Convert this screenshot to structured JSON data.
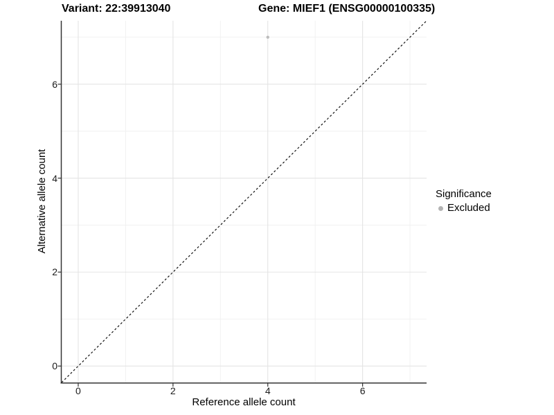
{
  "titles": {
    "variant": "Variant: 22:39913040",
    "gene": "Gene: MIEF1 (ENSG00000100335)"
  },
  "chart_data": {
    "type": "scatter",
    "title_left": "Variant: 22:39913040",
    "title_right": "Gene: MIEF1 (ENSG00000100335)",
    "xlabel": "Reference allele count",
    "ylabel": "Alternative allele count",
    "xlim": [
      -0.35,
      7.35
    ],
    "ylim": [
      -0.35,
      7.35
    ],
    "xticks": [
      0,
      2,
      4,
      6
    ],
    "yticks": [
      0,
      2,
      4,
      6
    ],
    "minor_gridlines": [
      1,
      3,
      5,
      7
    ],
    "grid": "major and minor gridlines on white background",
    "points": [
      {
        "x": 4,
        "y": 7,
        "significance": "Excluded"
      }
    ],
    "identity_line": {
      "slope": 1,
      "intercept": 0,
      "style": "dashed",
      "color": "#111111"
    },
    "legend": {
      "title": "Significance",
      "position": "right-center",
      "entries": [
        {
          "label": "Excluded",
          "marker": "circle",
          "color": "#b3b3b3"
        }
      ]
    },
    "colors": {
      "point": "#bcbcbc",
      "grid_major": "#e4e4e4",
      "grid_minor": "#f1f1f1",
      "axis_line": "#333333",
      "tick": "#333333",
      "background": "#ffffff"
    }
  }
}
